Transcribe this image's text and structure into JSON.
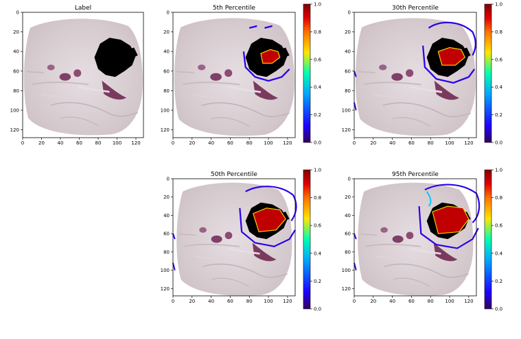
{
  "figure": {
    "panels": [
      {
        "id": "label",
        "title": "Label",
        "has_colorbar": false
      },
      {
        "id": "p5",
        "title": "5th Percentile",
        "has_colorbar": true
      },
      {
        "id": "p30",
        "title": "30th Percentile",
        "has_colorbar": true
      },
      {
        "id": "p50",
        "title": "50th Percentile",
        "has_colorbar": true
      },
      {
        "id": "p95",
        "title": "95th Percentile",
        "has_colorbar": true
      }
    ]
  },
  "chart_data": {
    "type": "heatmap",
    "image_axes": {
      "xlim": [
        0,
        128
      ],
      "ylim": [
        128,
        0
      ],
      "x_ticks": [
        0,
        20,
        40,
        60,
        80,
        100,
        120
      ],
      "y_ticks": [
        0,
        20,
        40,
        60,
        80,
        100,
        120
      ]
    },
    "colorbar": {
      "range": [
        0.0,
        1.0
      ],
      "ticks": [
        "0.0",
        "0.2",
        "0.4",
        "0.6",
        "0.8",
        "1.0"
      ],
      "colormap": "jet",
      "colors": [
        "#30005c",
        "#1e00ff",
        "#00a6ff",
        "#00ffb0",
        "#ffe600",
        "#ff7000",
        "#e00000",
        "#800000"
      ]
    },
    "background": "brain MRI slice",
    "overlay_colors": {
      "label": "#000000"
    }
  }
}
